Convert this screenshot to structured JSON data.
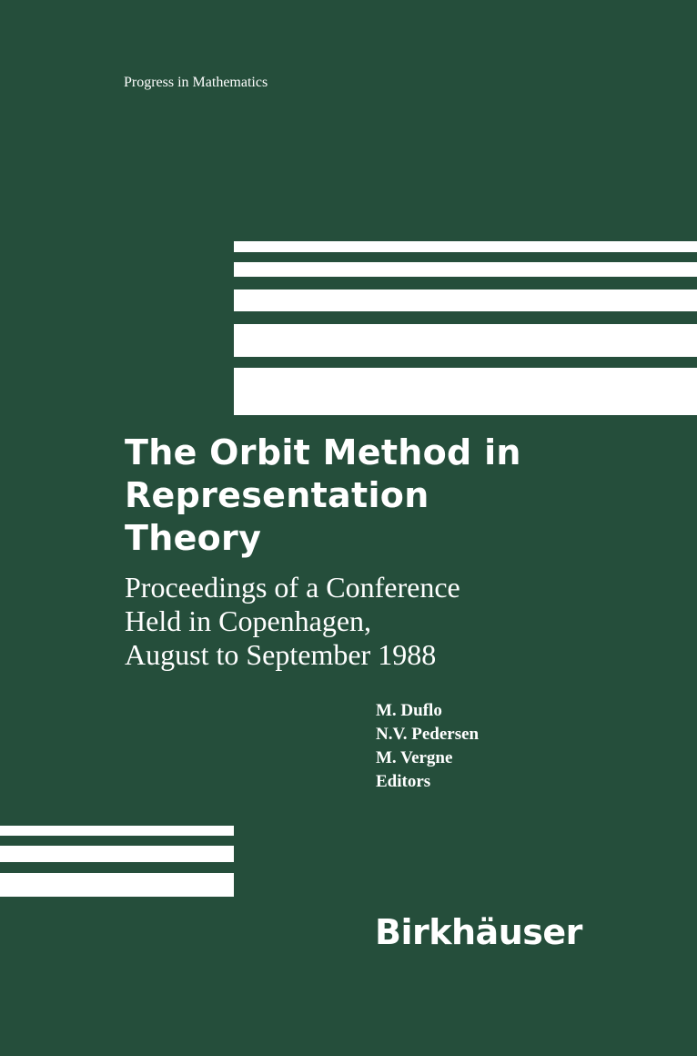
{
  "series": "Progress in Mathematics",
  "title_lines": [
    "The Orbit Method in",
    "Representation",
    "Theory"
  ],
  "subtitle_lines": [
    "Proceedings of a Conference",
    "Held in Copenhagen,",
    "August to September 1988"
  ],
  "editors": [
    "M. Duflo",
    "N.V. Pedersen",
    "M. Vergne",
    "Editors"
  ],
  "publisher": "Birkhäuser",
  "colors": {
    "background": "#254e3b",
    "stripes": "#ffffff",
    "text": "#ffffff"
  }
}
